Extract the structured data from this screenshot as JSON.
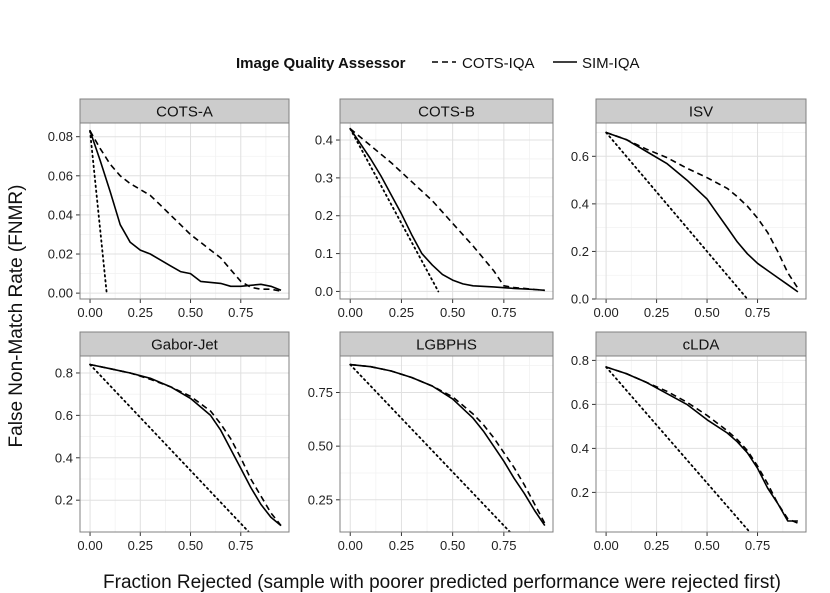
{
  "chart_data": {
    "type": "line",
    "xlabel": "Fraction Rejected (sample with poorer predicted performance were rejected first)",
    "ylabel": "False Non-Match Rate (FNMR)",
    "legend": {
      "title": "Image Quality Assessor",
      "placement": "top",
      "entries": [
        {
          "name": "COTS-IQA",
          "linetype": "dashed"
        },
        {
          "name": "SIM-IQA",
          "linetype": "solid"
        }
      ]
    },
    "grid": true,
    "x_ticks": [
      0,
      0.25,
      0.5,
      0.75
    ],
    "x_tick_labels": [
      "0.00",
      "0.25",
      "0.50",
      "0.75"
    ],
    "xlim": [
      -0.05,
      0.99
    ],
    "panels": [
      {
        "title": "COTS-A",
        "ylim": [
          -0.003,
          0.087
        ],
        "y_ticks": [
          0,
          0.02,
          0.04,
          0.06,
          0.08
        ],
        "y_tick_labels": [
          "0.00",
          "0.02",
          "0.04",
          "0.06",
          "0.08"
        ],
        "series": [
          {
            "name": "COTS-IQA",
            "linetype": "dashed",
            "x": [
              0,
              0.05,
              0.1,
              0.15,
              0.2,
              0.25,
              0.3,
              0.35,
              0.4,
              0.45,
              0.5,
              0.55,
              0.6,
              0.65,
              0.7,
              0.75,
              0.8,
              0.85,
              0.9,
              0.95
            ],
            "y": [
              0.083,
              0.074,
              0.066,
              0.06,
              0.056,
              0.053,
              0.05,
              0.045,
              0.04,
              0.035,
              0.03,
              0.026,
              0.022,
              0.018,
              0.012,
              0.006,
              0.003,
              0.002,
              0.002,
              0.001
            ]
          },
          {
            "name": "SIM-IQA",
            "linetype": "solid",
            "x": [
              0,
              0.05,
              0.1,
              0.15,
              0.2,
              0.25,
              0.3,
              0.35,
              0.4,
              0.45,
              0.5,
              0.55,
              0.6,
              0.65,
              0.7,
              0.75,
              0.8,
              0.85,
              0.9,
              0.95
            ],
            "y": [
              0.083,
              0.068,
              0.052,
              0.035,
              0.026,
              0.022,
              0.02,
              0.017,
              0.014,
              0.011,
              0.01,
              0.006,
              0.0055,
              0.005,
              0.0035,
              0.0035,
              0.004,
              0.0045,
              0.0035,
              0.0015
            ]
          },
          {
            "name": "",
            "linetype": "dotted",
            "x": [
              0,
              0.083
            ],
            "y": [
              0.083,
              0
            ]
          }
        ]
      },
      {
        "title": "COTS-B",
        "ylim": [
          -0.02,
          0.445
        ],
        "y_ticks": [
          0,
          0.1,
          0.2,
          0.3,
          0.4
        ],
        "y_tick_labels": [
          "0.0",
          "0.1",
          "0.2",
          "0.3",
          "0.4"
        ],
        "series": [
          {
            "name": "COTS-IQA",
            "linetype": "dashed",
            "x": [
              0,
              0.1,
              0.2,
              0.3,
              0.4,
              0.5,
              0.6,
              0.7,
              0.75,
              0.8,
              0.85,
              0.9,
              0.95
            ],
            "y": [
              0.43,
              0.385,
              0.34,
              0.29,
              0.24,
              0.18,
              0.12,
              0.055,
              0.015,
              0.01,
              0.008,
              0.005,
              0.003
            ]
          },
          {
            "name": "SIM-IQA",
            "linetype": "solid",
            "x": [
              0,
              0.05,
              0.1,
              0.15,
              0.2,
              0.25,
              0.3,
              0.35,
              0.4,
              0.45,
              0.5,
              0.55,
              0.6,
              0.7,
              0.8,
              0.9,
              0.95
            ],
            "y": [
              0.43,
              0.39,
              0.35,
              0.305,
              0.255,
              0.205,
              0.15,
              0.1,
              0.07,
              0.045,
              0.03,
              0.02,
              0.015,
              0.012,
              0.008,
              0.005,
              0.003
            ]
          },
          {
            "name": "",
            "linetype": "dotted",
            "x": [
              0,
              0.43
            ],
            "y": [
              0.43,
              0
            ]
          }
        ]
      },
      {
        "title": "ISV",
        "ylim": [
          0,
          0.74
        ],
        "y_ticks": [
          0,
          0.2,
          0.4,
          0.6
        ],
        "y_tick_labels": [
          "0.0",
          "0.2",
          "0.4",
          "0.6"
        ],
        "series": [
          {
            "name": "COTS-IQA",
            "linetype": "dashed",
            "x": [
              0,
              0.1,
              0.2,
              0.3,
              0.4,
              0.5,
              0.6,
              0.65,
              0.7,
              0.75,
              0.8,
              0.85,
              0.9,
              0.95
            ],
            "y": [
              0.7,
              0.67,
              0.63,
              0.595,
              0.55,
              0.51,
              0.465,
              0.43,
              0.39,
              0.34,
              0.28,
              0.2,
              0.11,
              0.045
            ]
          },
          {
            "name": "SIM-IQA",
            "linetype": "solid",
            "x": [
              0,
              0.1,
              0.2,
              0.3,
              0.4,
              0.5,
              0.55,
              0.6,
              0.65,
              0.7,
              0.75,
              0.8,
              0.85,
              0.9,
              0.95
            ],
            "y": [
              0.7,
              0.67,
              0.62,
              0.57,
              0.5,
              0.42,
              0.36,
              0.3,
              0.24,
              0.19,
              0.15,
              0.12,
              0.09,
              0.06,
              0.03
            ]
          },
          {
            "name": "",
            "linetype": "dotted",
            "x": [
              0,
              0.7
            ],
            "y": [
              0.7,
              0
            ]
          }
        ]
      },
      {
        "title": "Gabor-Jet",
        "ylim": [
          0.05,
          0.88
        ],
        "y_ticks": [
          0.2,
          0.4,
          0.6,
          0.8
        ],
        "y_tick_labels": [
          "0.2",
          "0.4",
          "0.6",
          "0.8"
        ],
        "series": [
          {
            "name": "COTS-IQA",
            "linetype": "dashed",
            "x": [
              0,
              0.1,
              0.2,
              0.3,
              0.4,
              0.5,
              0.6,
              0.65,
              0.7,
              0.75,
              0.8,
              0.85,
              0.9,
              0.95
            ],
            "y": [
              0.84,
              0.82,
              0.8,
              0.77,
              0.735,
              0.69,
              0.62,
              0.56,
              0.49,
              0.4,
              0.3,
              0.22,
              0.14,
              0.08
            ]
          },
          {
            "name": "SIM-IQA",
            "linetype": "solid",
            "x": [
              0,
              0.1,
              0.2,
              0.3,
              0.4,
              0.5,
              0.6,
              0.65,
              0.7,
              0.75,
              0.8,
              0.85,
              0.9,
              0.95
            ],
            "y": [
              0.84,
              0.82,
              0.8,
              0.775,
              0.735,
              0.68,
              0.6,
              0.53,
              0.44,
              0.35,
              0.26,
              0.18,
              0.12,
              0.08
            ]
          },
          {
            "name": "",
            "linetype": "dotted",
            "x": [
              0,
              0.84
            ],
            "y": [
              0.84,
              0
            ]
          }
        ]
      },
      {
        "title": "LGBPHS",
        "ylim": [
          0.1,
          0.92
        ],
        "y_ticks": [
          0.25,
          0.5,
          0.75
        ],
        "y_tick_labels": [
          "0.25",
          "0.50",
          "0.75"
        ],
        "series": [
          {
            "name": "COTS-IQA",
            "linetype": "dashed",
            "x": [
              0,
              0.1,
              0.2,
              0.3,
              0.4,
              0.5,
              0.6,
              0.65,
              0.7,
              0.75,
              0.8,
              0.85,
              0.9,
              0.95
            ],
            "y": [
              0.88,
              0.87,
              0.85,
              0.82,
              0.78,
              0.73,
              0.65,
              0.6,
              0.54,
              0.47,
              0.4,
              0.32,
              0.23,
              0.14
            ]
          },
          {
            "name": "SIM-IQA",
            "linetype": "solid",
            "x": [
              0,
              0.1,
              0.2,
              0.3,
              0.4,
              0.5,
              0.6,
              0.65,
              0.7,
              0.75,
              0.8,
              0.85,
              0.9,
              0.95
            ],
            "y": [
              0.88,
              0.87,
              0.85,
              0.82,
              0.78,
              0.72,
              0.63,
              0.57,
              0.5,
              0.43,
              0.35,
              0.28,
              0.2,
              0.13
            ]
          },
          {
            "name": "",
            "linetype": "dotted",
            "x": [
              0,
              0.78
            ],
            "y": [
              0.88,
              0.1
            ]
          }
        ]
      },
      {
        "title": "cLDA",
        "ylim": [
          0.02,
          0.82
        ],
        "y_ticks": [
          0.2,
          0.4,
          0.6,
          0.8
        ],
        "y_tick_labels": [
          "0.2",
          "0.4",
          "0.6",
          "0.8"
        ],
        "series": [
          {
            "name": "COTS-IQA",
            "linetype": "dashed",
            "x": [
              0,
              0.1,
              0.2,
              0.3,
              0.4,
              0.5,
              0.6,
              0.65,
              0.7,
              0.75,
              0.8,
              0.85,
              0.9,
              0.95
            ],
            "y": [
              0.77,
              0.74,
              0.7,
              0.66,
              0.61,
              0.55,
              0.48,
              0.44,
              0.39,
              0.32,
              0.24,
              0.15,
              0.08,
              0.06
            ]
          },
          {
            "name": "SIM-IQA",
            "linetype": "solid",
            "x": [
              0,
              0.1,
              0.2,
              0.3,
              0.4,
              0.5,
              0.6,
              0.65,
              0.7,
              0.75,
              0.8,
              0.85,
              0.9,
              0.95
            ],
            "y": [
              0.77,
              0.74,
              0.7,
              0.65,
              0.6,
              0.53,
              0.47,
              0.43,
              0.38,
              0.31,
              0.22,
              0.15,
              0.07,
              0.07
            ]
          },
          {
            "name": "",
            "linetype": "dotted",
            "x": [
              0,
              0.73
            ],
            "y": [
              0.77,
              0
            ]
          }
        ]
      }
    ]
  }
}
